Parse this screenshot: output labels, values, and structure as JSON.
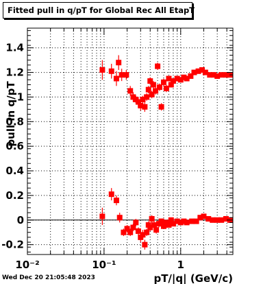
{
  "title": "Fitted pull in q/pT for Global Rec All EtapT",
  "timestamp": "Wed Dec 20 21:05:48 2023",
  "colors": {
    "marker": "#ff0000",
    "grid": "#000000"
  },
  "chart_data": {
    "type": "scatter",
    "title": "Fitted pull in q/pT for Global Rec All EtapT",
    "xlabel": "pT/|q| (GeV/c)",
    "ylabel": "pull in q/pT",
    "xscale": "log",
    "xlim": [
      0.01,
      4.8
    ],
    "ylim": [
      -0.28,
      1.56
    ],
    "grid": true,
    "x_tick_labels": [
      "10⁻²",
      "10⁻¹",
      "1"
    ],
    "y_tick_labels": [
      "-0.2",
      "0",
      "0.2",
      "0.4",
      "0.6",
      "0.8",
      "1",
      "1.2",
      "1.4"
    ],
    "reference_line_y": 0,
    "series": [
      {
        "points": [
          {
            "x": 0.095,
            "y": 1.22,
            "err": 0.08
          },
          {
            "x": 0.125,
            "y": 1.21,
            "err": 0.06
          },
          {
            "x": 0.155,
            "y": 1.28,
            "err": 0.06
          },
          {
            "x": 0.145,
            "y": 1.15,
            "err": 0.06
          },
          {
            "x": 0.17,
            "y": 1.18,
            "err": 0.05
          },
          {
            "x": 0.195,
            "y": 1.18,
            "err": 0.04
          },
          {
            "x": 0.22,
            "y": 1.05,
            "err": 0.04
          },
          {
            "x": 0.24,
            "y": 1.0,
            "err": 0.04
          },
          {
            "x": 0.26,
            "y": 0.98,
            "err": 0.03
          },
          {
            "x": 0.28,
            "y": 0.96,
            "err": 0.04
          },
          {
            "x": 0.3,
            "y": 0.93,
            "err": 0.04
          },
          {
            "x": 0.32,
            "y": 0.98,
            "err": 0.03
          },
          {
            "x": 0.34,
            "y": 0.92,
            "err": 0.04
          },
          {
            "x": 0.36,
            "y": 1.0,
            "err": 0.03
          },
          {
            "x": 0.38,
            "y": 1.06,
            "err": 0.03
          },
          {
            "x": 0.4,
            "y": 1.13,
            "err": 0.03
          },
          {
            "x": 0.42,
            "y": 1.02,
            "err": 0.03
          },
          {
            "x": 0.44,
            "y": 1.1,
            "err": 0.03
          },
          {
            "x": 0.47,
            "y": 1.05,
            "err": 0.03
          },
          {
            "x": 0.5,
            "y": 1.25,
            "err": 0.03
          },
          {
            "x": 0.53,
            "y": 1.08,
            "err": 0.03
          },
          {
            "x": 0.56,
            "y": 0.92,
            "err": 0.03
          },
          {
            "x": 0.6,
            "y": 1.12,
            "err": 0.03
          },
          {
            "x": 0.65,
            "y": 1.07,
            "err": 0.03
          },
          {
            "x": 0.7,
            "y": 1.15,
            "err": 0.02
          },
          {
            "x": 0.75,
            "y": 1.1,
            "err": 0.02
          },
          {
            "x": 0.8,
            "y": 1.13,
            "err": 0.02
          },
          {
            "x": 0.9,
            "y": 1.15,
            "err": 0.02
          },
          {
            "x": 1.0,
            "y": 1.14,
            "err": 0.02
          },
          {
            "x": 1.1,
            "y": 1.16,
            "err": 0.02
          },
          {
            "x": 1.2,
            "y": 1.15,
            "err": 0.02
          },
          {
            "x": 1.35,
            "y": 1.17,
            "err": 0.02
          },
          {
            "x": 1.5,
            "y": 1.2,
            "err": 0.02
          },
          {
            "x": 1.7,
            "y": 1.21,
            "err": 0.02
          },
          {
            "x": 1.9,
            "y": 1.22,
            "err": 0.02
          },
          {
            "x": 2.1,
            "y": 1.2,
            "err": 0.02
          },
          {
            "x": 2.4,
            "y": 1.18,
            "err": 0.02
          },
          {
            "x": 2.7,
            "y": 1.18,
            "err": 0.02
          },
          {
            "x": 3.0,
            "y": 1.17,
            "err": 0.02
          },
          {
            "x": 3.4,
            "y": 1.18,
            "err": 0.02
          },
          {
            "x": 3.9,
            "y": 1.18,
            "err": 0.02
          },
          {
            "x": 4.4,
            "y": 1.18,
            "err": 0.02
          },
          {
            "x": 0.095,
            "y": 0.03,
            "err": 0.07
          },
          {
            "x": 0.125,
            "y": 0.21,
            "err": 0.05
          },
          {
            "x": 0.145,
            "y": 0.16,
            "err": 0.04
          },
          {
            "x": 0.16,
            "y": 0.02,
            "err": 0.04
          },
          {
            "x": 0.18,
            "y": -0.1,
            "err": 0.03
          },
          {
            "x": 0.2,
            "y": -0.07,
            "err": 0.03
          },
          {
            "x": 0.22,
            "y": -0.1,
            "err": 0.03
          },
          {
            "x": 0.24,
            "y": -0.06,
            "err": 0.03
          },
          {
            "x": 0.26,
            "y": -0.02,
            "err": 0.03
          },
          {
            "x": 0.28,
            "y": -0.09,
            "err": 0.03
          },
          {
            "x": 0.3,
            "y": -0.14,
            "err": 0.04
          },
          {
            "x": 0.32,
            "y": -0.12,
            "err": 0.04
          },
          {
            "x": 0.34,
            "y": -0.2,
            "err": 0.04
          },
          {
            "x": 0.36,
            "y": -0.1,
            "err": 0.03
          },
          {
            "x": 0.38,
            "y": -0.04,
            "err": 0.03
          },
          {
            "x": 0.4,
            "y": -0.06,
            "err": 0.03
          },
          {
            "x": 0.42,
            "y": 0.01,
            "err": 0.03
          },
          {
            "x": 0.45,
            "y": -0.04,
            "err": 0.03
          },
          {
            "x": 0.48,
            "y": -0.08,
            "err": 0.03
          },
          {
            "x": 0.52,
            "y": -0.03,
            "err": 0.03
          },
          {
            "x": 0.56,
            "y": -0.01,
            "err": 0.02
          },
          {
            "x": 0.6,
            "y": -0.05,
            "err": 0.02
          },
          {
            "x": 0.65,
            "y": -0.02,
            "err": 0.02
          },
          {
            "x": 0.7,
            "y": -0.04,
            "err": 0.02
          },
          {
            "x": 0.75,
            "y": 0.0,
            "err": 0.02
          },
          {
            "x": 0.8,
            "y": -0.03,
            "err": 0.02
          },
          {
            "x": 0.9,
            "y": -0.01,
            "err": 0.02
          },
          {
            "x": 1.0,
            "y": -0.02,
            "err": 0.02
          },
          {
            "x": 1.1,
            "y": -0.01,
            "err": 0.02
          },
          {
            "x": 1.2,
            "y": -0.02,
            "err": 0.02
          },
          {
            "x": 1.4,
            "y": -0.01,
            "err": 0.02
          },
          {
            "x": 1.6,
            "y": -0.01,
            "err": 0.02
          },
          {
            "x": 1.8,
            "y": 0.02,
            "err": 0.02
          },
          {
            "x": 2.0,
            "y": 0.03,
            "err": 0.02
          },
          {
            "x": 2.3,
            "y": 0.01,
            "err": 0.02
          },
          {
            "x": 2.6,
            "y": 0.0,
            "err": 0.02
          },
          {
            "x": 3.0,
            "y": 0.0,
            "err": 0.02
          },
          {
            "x": 3.4,
            "y": 0.0,
            "err": 0.02
          },
          {
            "x": 3.9,
            "y": 0.01,
            "err": 0.02
          },
          {
            "x": 4.4,
            "y": 0.0,
            "err": 0.02
          }
        ]
      }
    ]
  }
}
